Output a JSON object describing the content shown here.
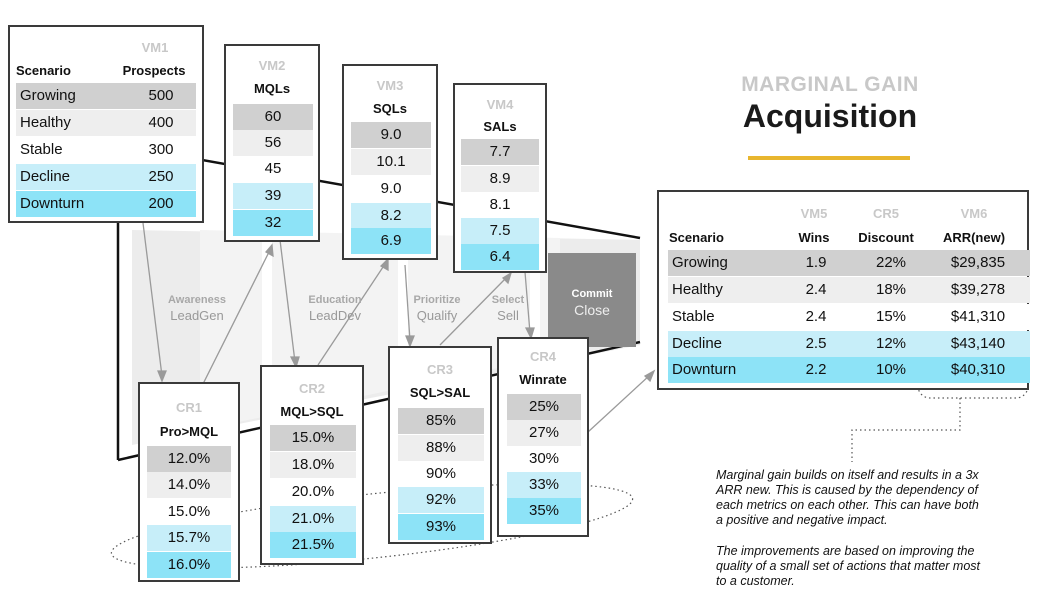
{
  "title": {
    "line1": "MARGINAL GAIN",
    "line2": "Acquisition",
    "underline_color": "#e8b62e"
  },
  "scenarios_table": {
    "vm_label": "VM1",
    "headers": [
      "Scenario",
      "Prospects"
    ],
    "rows": [
      [
        "Growing",
        "500"
      ],
      [
        "Healthy",
        "400"
      ],
      [
        "Stable",
        "300"
      ],
      [
        "Decline",
        "250"
      ],
      [
        "Downturn",
        "200"
      ]
    ]
  },
  "vm2": {
    "vm_label": "VM2",
    "header": "MQLs",
    "values": [
      "60",
      "56",
      "45",
      "39",
      "32"
    ]
  },
  "vm3": {
    "vm_label": "VM3",
    "header": "SQLs",
    "values": [
      "9.0",
      "10.1",
      "9.0",
      "8.2",
      "6.9"
    ]
  },
  "vm4": {
    "vm_label": "VM4",
    "header": "SALs",
    "values": [
      "7.7",
      "8.9",
      "8.1",
      "7.5",
      "6.4"
    ]
  },
  "cr1": {
    "vm_label": "CR1",
    "header": "Pro>MQL",
    "values": [
      "12.0%",
      "14.0%",
      "15.0%",
      "15.7%",
      "16.0%"
    ]
  },
  "cr2": {
    "vm_label": "CR2",
    "header": "MQL>SQL",
    "values": [
      "15.0%",
      "18.0%",
      "20.0%",
      "21.0%",
      "21.5%"
    ]
  },
  "cr3": {
    "vm_label": "CR3",
    "header": "SQL>SAL",
    "values": [
      "85%",
      "88%",
      "90%",
      "92%",
      "93%"
    ]
  },
  "cr4": {
    "vm_label": "CR4",
    "header": "Winrate",
    "values": [
      "25%",
      "27%",
      "30%",
      "33%",
      "35%"
    ]
  },
  "stages": [
    {
      "top": "Awareness",
      "bottom": "LeadGen"
    },
    {
      "top": "Education",
      "bottom": "LeadDev"
    },
    {
      "top": "Prioritize",
      "bottom": "Qualify"
    },
    {
      "top": "Select",
      "bottom": "Sell"
    },
    {
      "top": "Commit",
      "bottom": "Close"
    }
  ],
  "results": {
    "vm_labels": [
      "VM5",
      "CR5",
      "VM6"
    ],
    "headers": [
      "Scenario",
      "Wins",
      "Discount",
      "ARR(new)"
    ],
    "rows": [
      [
        "Growing",
        "1.9",
        "22%",
        "$29,835"
      ],
      [
        "Healthy",
        "2.4",
        "18%",
        "$39,278"
      ],
      [
        "Stable",
        "2.4",
        "15%",
        "$41,310"
      ],
      [
        "Decline",
        "2.5",
        "12%",
        "$43,140"
      ],
      [
        "Downturn",
        "2.2",
        "10%",
        "$40,310"
      ]
    ]
  },
  "notes": [
    "Marginal gain builds on itself and results in a 3x ARR new.  This is caused by the dependency of each metrics on each other.  This can have both a positive and negative impact.",
    "The improvements are based on improving the quality of a small set of actions that matter most to a customer."
  ],
  "colors": {
    "grey_dark": "#d0d0d0",
    "grey_light": "#eeeeee",
    "blue_light": "#c7eef9",
    "blue_mid": "#8de3f7",
    "commit_box": "#8a8a8a"
  }
}
